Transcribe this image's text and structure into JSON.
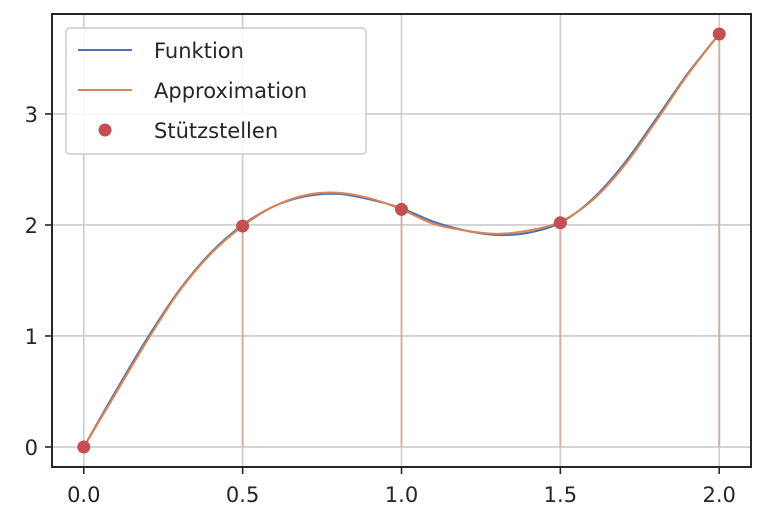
{
  "chart_data": {
    "type": "line",
    "title": "",
    "xlabel": "",
    "ylabel": "",
    "xlim": [
      -0.1,
      2.1
    ],
    "ylim": [
      -0.18,
      3.9
    ],
    "grid": true,
    "legend_position": "top-left",
    "x_ticks": [
      0.0,
      0.5,
      1.0,
      1.5,
      2.0
    ],
    "x_tick_labels": [
      "0.0",
      "0.5",
      "1.0",
      "1.5",
      "2.0"
    ],
    "y_ticks": [
      0,
      1,
      2,
      3
    ],
    "y_tick_labels": [
      "0",
      "1",
      "2",
      "3"
    ],
    "series": [
      {
        "name": "Funktion",
        "kind": "line",
        "color": "#4c72b0",
        "x": [
          0.0,
          0.1,
          0.2,
          0.3,
          0.4,
          0.5,
          0.6,
          0.7,
          0.8,
          0.9,
          1.0,
          1.1,
          1.2,
          1.3,
          1.4,
          1.5,
          1.6,
          1.7,
          1.8,
          1.9,
          2.0
        ],
        "y": [
          0.0,
          0.5,
          0.98,
          1.41,
          1.75,
          2.0,
          2.17,
          2.26,
          2.28,
          2.23,
          2.15,
          2.03,
          1.95,
          1.91,
          1.93,
          2.02,
          2.23,
          2.55,
          2.95,
          3.36,
          3.72
        ]
      },
      {
        "name": "Approximation",
        "kind": "line",
        "color": "#dd8452",
        "x": [
          0.0,
          0.1,
          0.2,
          0.3,
          0.4,
          0.5,
          0.6,
          0.7,
          0.8,
          0.9,
          1.0,
          1.1,
          1.2,
          1.3,
          1.4,
          1.5,
          1.6,
          1.7,
          1.8,
          1.9,
          2.0
        ],
        "y": [
          0.0,
          0.48,
          0.96,
          1.4,
          1.74,
          1.99,
          2.17,
          2.27,
          2.29,
          2.24,
          2.14,
          2.01,
          1.95,
          1.92,
          1.95,
          2.03,
          2.22,
          2.53,
          2.93,
          3.35,
          3.72
        ]
      },
      {
        "name": "Stützstellen",
        "kind": "scatter",
        "color": "#c44e52",
        "x": [
          0.0,
          0.5,
          1.0,
          1.5,
          2.0
        ],
        "y": [
          0.0,
          1.99,
          2.14,
          2.02,
          3.72
        ]
      }
    ],
    "stems": {
      "color": "#d5b0a5",
      "x": [
        0.5,
        1.0,
        1.5,
        2.0
      ],
      "y": [
        1.99,
        2.14,
        2.02,
        3.72
      ]
    }
  }
}
